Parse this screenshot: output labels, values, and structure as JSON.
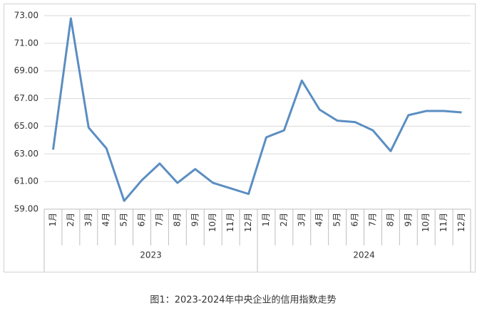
{
  "chart_data": {
    "type": "line",
    "caption": "图1：2023-2024年中央企业的信用指数走势",
    "categories": [
      "1月",
      "2月",
      "3月",
      "4月",
      "5月",
      "6月",
      "7月",
      "8月",
      "9月",
      "10月",
      "11月",
      "12月",
      "1月",
      "2月",
      "3月",
      "4月",
      "5月",
      "6月",
      "7月",
      "8月",
      "9月",
      "10月",
      "11月",
      "12月"
    ],
    "groups": [
      "2023",
      "2024"
    ],
    "values": [
      63.3,
      72.8,
      64.9,
      63.4,
      59.6,
      61.1,
      62.3,
      60.9,
      61.9,
      60.9,
      60.5,
      60.1,
      64.2,
      64.7,
      68.3,
      66.2,
      65.4,
      65.3,
      64.7,
      63.2,
      65.8,
      66.1,
      66.1,
      66.0
    ],
    "color": "#5b8ec2",
    "ylim": [
      59,
      73
    ],
    "yticks": [
      {
        "value": 59,
        "label": "59.00"
      },
      {
        "value": 61,
        "label": "61.00"
      },
      {
        "value": 63,
        "label": "63.00"
      },
      {
        "value": 65,
        "label": "65.00"
      },
      {
        "value": 67,
        "label": "67.00"
      },
      {
        "value": 69,
        "label": "69.00"
      },
      {
        "value": 71,
        "label": "71.00"
      },
      {
        "value": 73,
        "label": "73.00"
      }
    ],
    "grid": true
  }
}
